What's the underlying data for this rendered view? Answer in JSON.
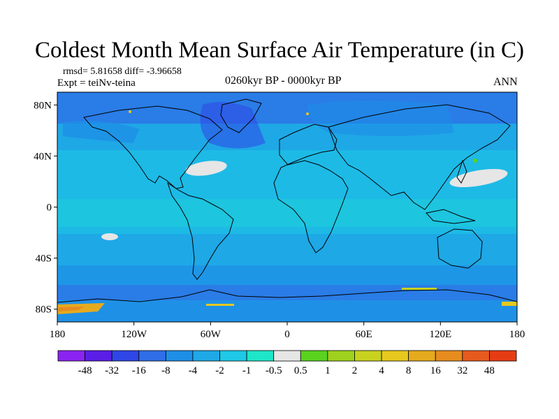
{
  "title": "Coldest Month Mean Surface Air Temperature (in C)",
  "stats_line": "rmsd= 5.81658 diff= -3.96658",
  "experiment_line": "Expt = teiNv-teina",
  "period": "0260kyr BP - 0000kyr BP",
  "season": "ANN",
  "map": {
    "lon_ticks": [
      {
        "value": -180,
        "label": "180"
      },
      {
        "value": -120,
        "label": "120W"
      },
      {
        "value": -60,
        "label": "60W"
      },
      {
        "value": 0,
        "label": "0"
      },
      {
        "value": 60,
        "label": "60E"
      },
      {
        "value": 120,
        "label": "120E"
      },
      {
        "value": 180,
        "label": "180"
      }
    ],
    "lat_ticks": [
      {
        "value": 80,
        "label": "80N"
      },
      {
        "value": 40,
        "label": "40N"
      },
      {
        "value": 0,
        "label": "0"
      },
      {
        "value": -40,
        "label": "40S"
      },
      {
        "value": -80,
        "label": "80S"
      }
    ],
    "lon_range": [
      -180,
      180
    ],
    "lat_range": [
      -90,
      90
    ]
  },
  "colorbar": {
    "colors": [
      "#8a24f0",
      "#5a1ee6",
      "#2f46e6",
      "#2f6ee6",
      "#1e8ee6",
      "#1ea8e6",
      "#1ec8e6",
      "#1ee6c8",
      "#e6e6e6",
      "#5ad21e",
      "#9ed21e",
      "#c8d21e",
      "#e6c81e",
      "#e6aa1e",
      "#e68c1e",
      "#e65a1e",
      "#e63c14"
    ],
    "labels": [
      "-48",
      "-32",
      "-16",
      "-8",
      "-4",
      "-2",
      "-1",
      "-0.5",
      "0.5",
      "1",
      "2",
      "4",
      "8",
      "16",
      "32",
      "48"
    ]
  }
}
